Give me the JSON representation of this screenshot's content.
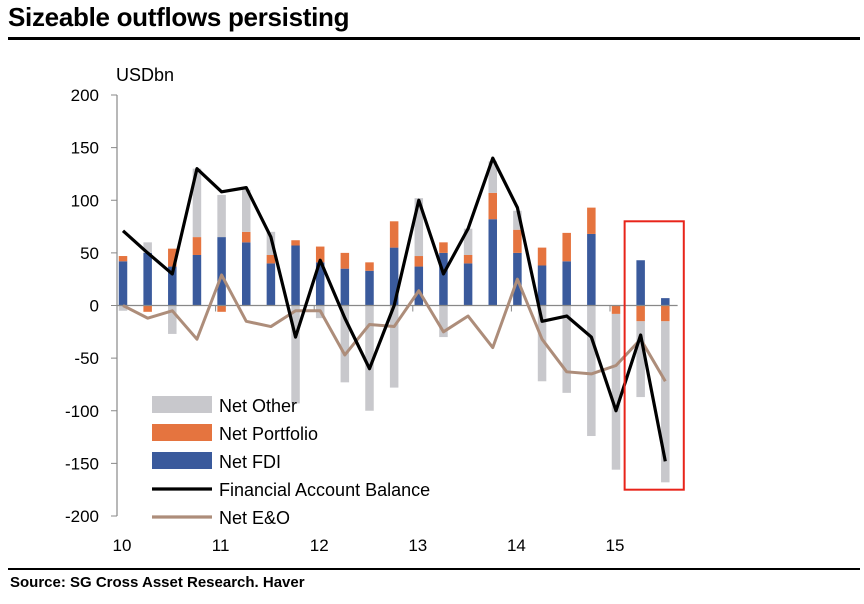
{
  "title": "Sizeable outflows persisting",
  "source": "Source: SG Cross Asset Research. Haver",
  "chart_data": {
    "type": "bar",
    "unit_label": "USDbn",
    "ylim": [
      -200,
      200
    ],
    "y_ticks": [
      200,
      150,
      100,
      50,
      0,
      -50,
      -100,
      -150,
      -200
    ],
    "x_tick_labels": [
      "10",
      "11",
      "12",
      "13",
      "14",
      "15"
    ],
    "x_tick_start_index": [
      0,
      4,
      8,
      12,
      16,
      20
    ],
    "categories": [
      "2010Q1",
      "2010Q2",
      "2010Q3",
      "2010Q4",
      "2011Q1",
      "2011Q2",
      "2011Q3",
      "2011Q4",
      "2012Q1",
      "2012Q2",
      "2012Q3",
      "2012Q4",
      "2013Q1",
      "2013Q2",
      "2013Q3",
      "2013Q4",
      "2014Q1",
      "2014Q2",
      "2014Q3",
      "2014Q4",
      "2015Q1",
      "2015Q2",
      "2015Q3"
    ],
    "colors": {
      "net_other": "#c8c8cc",
      "net_portfolio": "#e5743f",
      "net_fdi": "#3a5a9c",
      "financial_account_balance": "#000000",
      "net_eo": "#ad8d7a",
      "highlight_box": "#e8241a"
    },
    "series": [
      {
        "key": "net_fdi",
        "name": "Net FDI",
        "values": [
          42,
          50,
          37,
          48,
          65,
          60,
          40,
          57,
          41,
          35,
          33,
          55,
          37,
          50,
          40,
          82,
          50,
          38,
          42,
          68,
          0,
          43,
          7
        ]
      },
      {
        "key": "net_portfolio",
        "name": "Net Portfolio",
        "values": [
          5,
          -6,
          17,
          17,
          -6,
          10,
          8,
          5,
          15,
          15,
          8,
          25,
          10,
          10,
          8,
          25,
          22,
          17,
          27,
          25,
          -8,
          -15,
          -15
        ]
      },
      {
        "key": "net_other",
        "name": "Net Other",
        "values": [
          -5,
          10,
          -27,
          65,
          40,
          40,
          22,
          -93,
          -12,
          -73,
          -100,
          -78,
          55,
          -30,
          25,
          30,
          18,
          -72,
          -83,
          -124,
          -148,
          -72,
          -153
        ]
      },
      {
        "key": "financial_account_balance",
        "name": "Financial Account Balance",
        "values": [
          71,
          50,
          30,
          130,
          108,
          112,
          65,
          -30,
          43,
          -12,
          -60,
          0,
          100,
          30,
          73,
          140,
          93,
          -15,
          -10,
          -30,
          -100,
          -28,
          -148
        ]
      },
      {
        "key": "net_eo",
        "name": "Net E&O",
        "values": [
          0,
          -12,
          -5,
          -32,
          29,
          -15,
          -20,
          -5,
          -5,
          -47,
          -18,
          -20,
          14,
          -25,
          -10,
          -40,
          25,
          -32,
          -63,
          -65,
          -57,
          -32,
          -72
        ]
      }
    ],
    "legend_order": [
      "net_other",
      "net_portfolio",
      "net_fdi",
      "financial_account_balance",
      "net_eo"
    ],
    "legend_placement": "bottom-left",
    "highlight_categories": [
      "2015Q2",
      "2015Q3"
    ],
    "grid": false
  }
}
